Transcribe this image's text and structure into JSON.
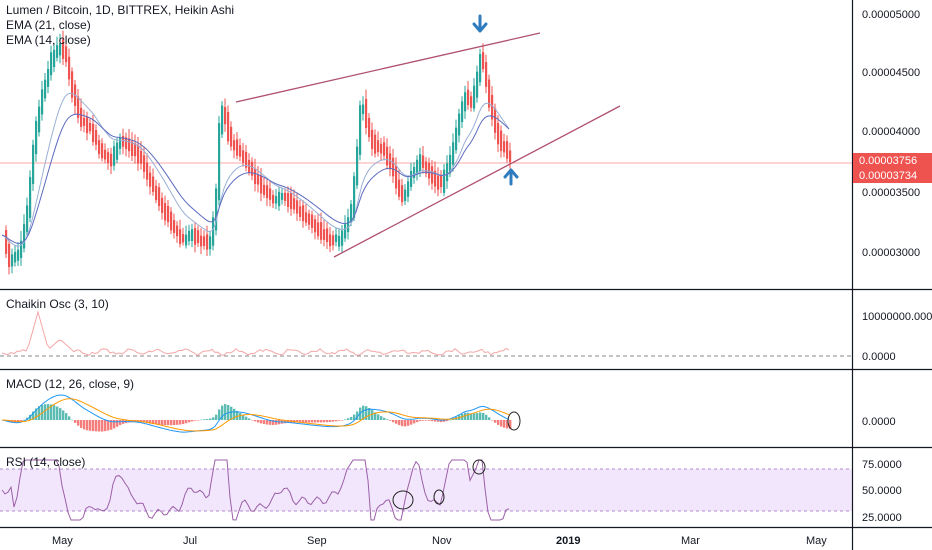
{
  "chart_data": [
    {
      "type": "candlestick",
      "title": "Lumen / Bitcoin, 1D, BITTREX, Heikin Ashi",
      "indicators": [
        "EMA (21, close)",
        "EMA (14, close)"
      ],
      "x_ticks": [
        "May",
        "Jul",
        "Sep",
        "Nov",
        "2019",
        "Mar",
        "May"
      ],
      "y_ticks": [
        "0.00003000",
        "0.00003500",
        "0.00004000",
        "0.00004500",
        "0.00005000"
      ],
      "ylim": [
        2.68e-05,
        5.15e-05
      ],
      "price_tags": [
        {
          "label": "0.00003756",
          "color": "#ef5350"
        },
        {
          "label": "0.00003734",
          "color": "#ef5350"
        }
      ],
      "up_color": "#26a69a",
      "down_color": "#ef5350",
      "ema21_color": "#5b6bbf",
      "ema14_color": "#9ab0d6",
      "trendline_color": "#b0506e",
      "arrow_color": "#2f7bbf",
      "annotations": [
        "arrow-down-top",
        "arrow-up-bottom",
        "rising-wedge-upper",
        "rising-wedge-lower"
      ],
      "grid": false
    },
    {
      "type": "line",
      "title": "Chaikin Osc (3, 10)",
      "y_ticks": [
        "10000000.0000",
        "0.0000"
      ],
      "ylim": [
        -2000000,
        12000000
      ],
      "color": "#f4a6a6"
    },
    {
      "type": "bar+line",
      "title": "MACD (12, 26, close, 9)",
      "y_ticks": [
        "0.0000"
      ],
      "histogram_colors": [
        "#26a69a",
        "#ef5350"
      ],
      "macd_color": "#2196f3",
      "signal_color": "#ff9800"
    },
    {
      "type": "line",
      "title": "RSI (14, close)",
      "y_ticks": [
        "75.0000",
        "50.0000",
        "25.0000"
      ],
      "ylim": [
        18,
        88
      ],
      "band": [
        30,
        70
      ],
      "color": "#9c5fa8",
      "band_color": "#f1e6fb"
    }
  ]
}
